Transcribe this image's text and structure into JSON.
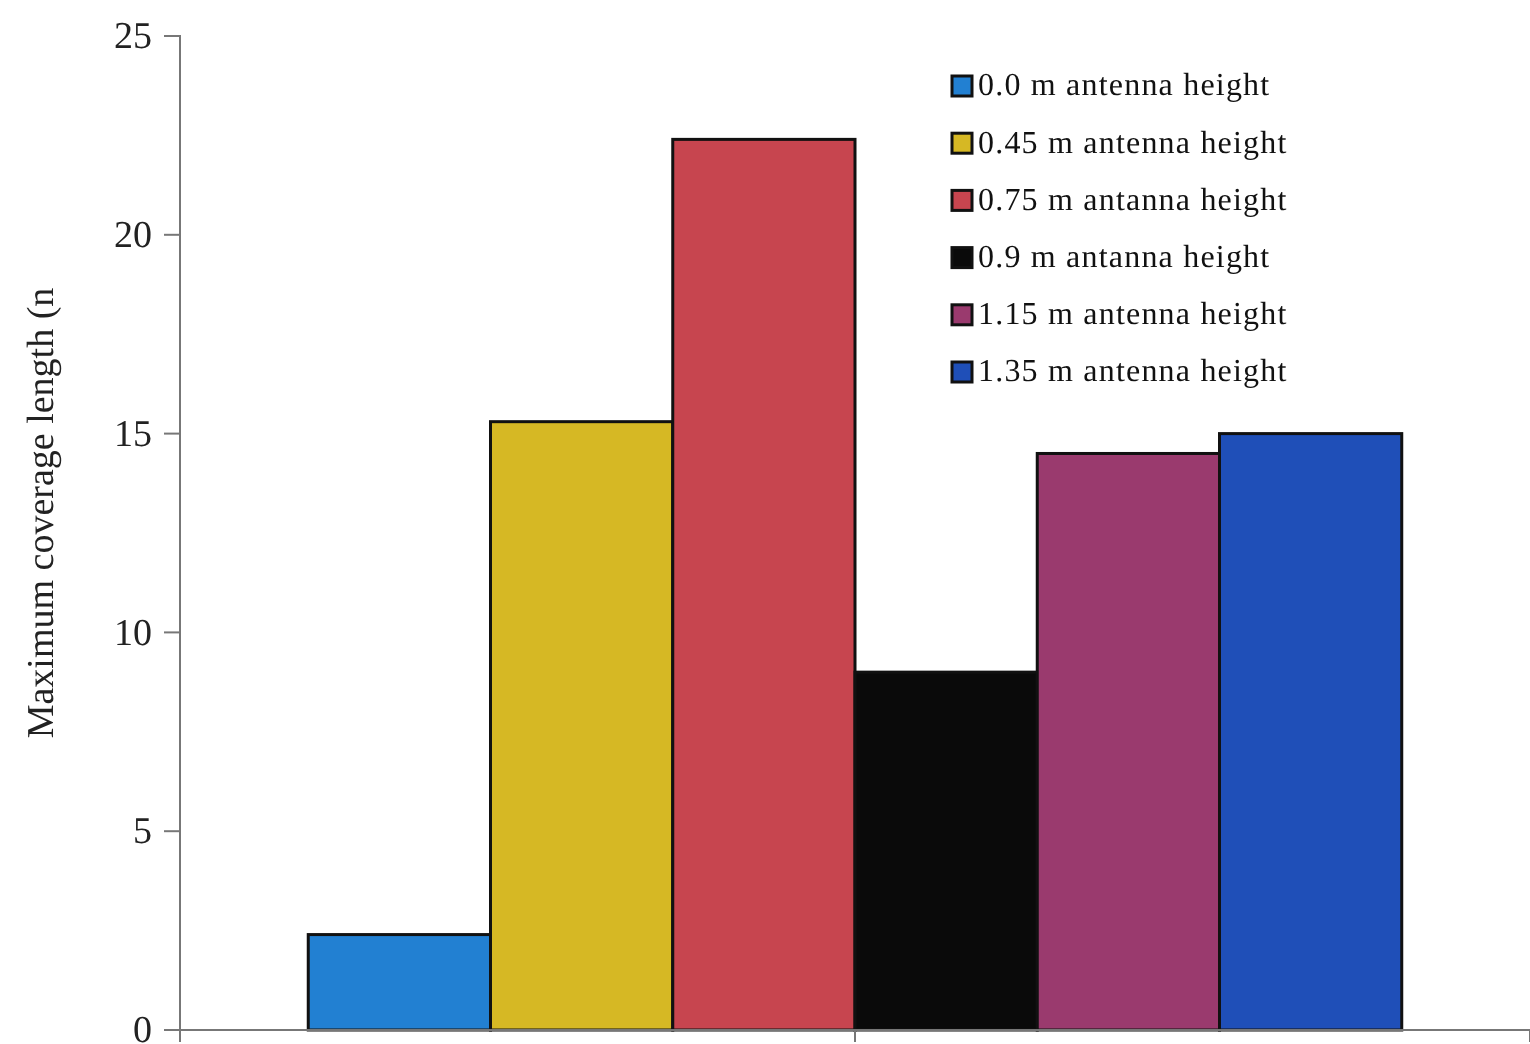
{
  "chart_data": {
    "type": "bar",
    "ylabel": "Maximum coverage length (n",
    "categories": [
      null
    ],
    "series": [
      {
        "name": "0.0 m antenna height",
        "color": "#2280d2",
        "values": [
          2.4
        ]
      },
      {
        "name": "0.45 m antenna height",
        "color": "#d6b824",
        "values": [
          15.3
        ]
      },
      {
        "name": "0.75 m antanna height",
        "color": "#c7454f",
        "values": [
          22.4
        ]
      },
      {
        "name": "0.9 m antanna height",
        "color": "#0a0a0a",
        "values": [
          9.0
        ]
      },
      {
        "name": "1.15 m antenna height",
        "color": "#9a3a6e",
        "values": [
          14.5
        ]
      },
      {
        "name": "1.35 m antenna height",
        "color": "#1f4fb8",
        "values": [
          15.0
        ]
      }
    ],
    "ylim": [
      0,
      25
    ],
    "yticks": [
      0,
      5,
      10,
      15,
      20,
      25
    ],
    "legend": "top right"
  }
}
